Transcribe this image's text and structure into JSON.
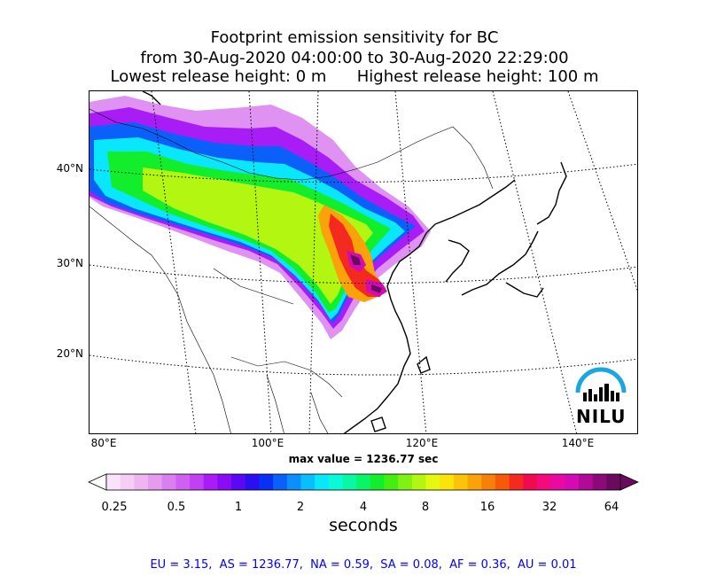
{
  "title": {
    "line1": "Footprint emission sensitivity for BC",
    "line2": "from 30-Aug-2020 04:00:00 to 30-Aug-2020 22:29:00",
    "line3": "Lowest release height: 0 m      Highest release height: 100 m"
  },
  "map": {
    "lat_labels": [
      "40°N",
      "30°N",
      "20°N"
    ],
    "lon_labels": [
      "80°E",
      "100°E",
      "120°E",
      "140°E"
    ],
    "logo_text": "NILU"
  },
  "max_value": "max value = 1236.77 sec",
  "colorbar": {
    "ticks": [
      "0.25",
      "0.5",
      "1",
      "2",
      "4",
      "8",
      "16",
      "32",
      "64"
    ],
    "label": "seconds",
    "colors": [
      "#fbe4fb",
      "#f5cdf5",
      "#eeb5f1",
      "#e59bee",
      "#da7ff0",
      "#cf61f2",
      "#c040f4",
      "#a81df6",
      "#8a0cf7",
      "#5b08f5",
      "#2a10f0",
      "#0a30f5",
      "#0a60f8",
      "#0a8ffb",
      "#0abdfd",
      "#0ae6fb",
      "#0afad8",
      "#0af8a4",
      "#0af468",
      "#12ee2c",
      "#44ee12",
      "#7ef212",
      "#b2f612",
      "#e4f812",
      "#fbe40a",
      "#fbc40a",
      "#f9a20a",
      "#f7800a",
      "#f55a0a",
      "#f42a20",
      "#f20a50",
      "#f20a7e",
      "#e80aa2",
      "#d40ab4",
      "#b20a98",
      "#8c0a78",
      "#6a0a5e"
    ]
  },
  "footer": "EU = 3.15,  AS = 1236.77,  NA = 0.59,  SA = 0.08,  AF = 0.36,  AU = 0.01"
}
